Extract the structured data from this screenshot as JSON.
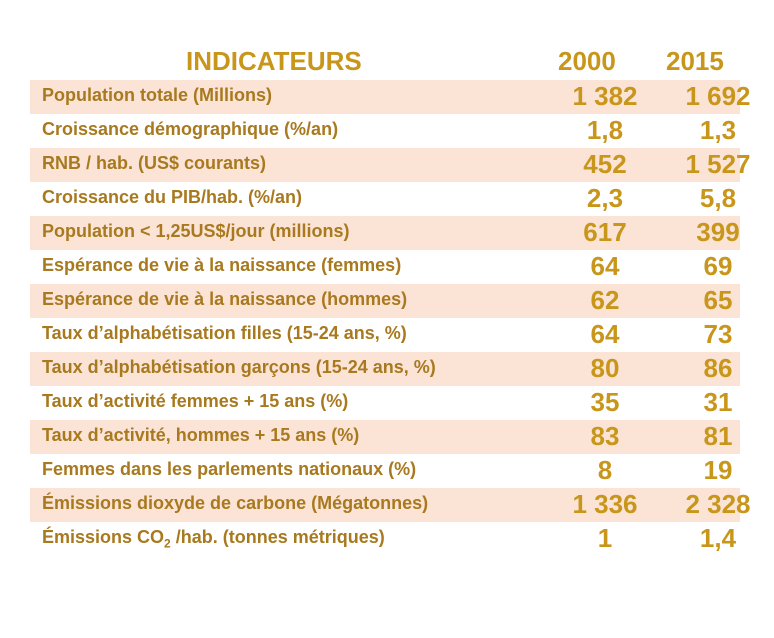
{
  "header": {
    "title": "INDICATEURS",
    "year1": "2000",
    "year2": "2015"
  },
  "rows": [
    {
      "label": "Population totale (Millions)",
      "v2000": "1 382",
      "v2015": "1 692"
    },
    {
      "label": "Croissance démographique (%/an)",
      "v2000": "1,8",
      "v2015": "1,3"
    },
    {
      "label": "RNB / hab. (US$ courants)",
      "v2000": "452",
      "v2015": "1 527"
    },
    {
      "label": "Croissance du PIB/hab. (%/an)",
      "v2000": "2,3",
      "v2015": "5,8"
    },
    {
      "label": "Population < 1,25US$/jour (millions)",
      "v2000": "617",
      "v2015": "399"
    },
    {
      "label": "Espérance de vie à la naissance (femmes)",
      "v2000": "64",
      "v2015": "69"
    },
    {
      "label": "Espérance de vie à la naissance (hommes)",
      "v2000": "62",
      "v2015": "65"
    },
    {
      "label": "Taux d’alphabétisation filles (15-24 ans, %)",
      "v2000": "64",
      "v2015": "73"
    },
    {
      "label": "Taux d’alphabétisation garçons (15-24 ans, %)",
      "v2000": "80",
      "v2015": "86"
    },
    {
      "label": "Taux d’activité femmes + 15 ans (%)",
      "v2000": "35",
      "v2015": "31"
    },
    {
      "label": "Taux d’activité, hommes + 15 ans (%)",
      "v2000": "83",
      "v2015": "81"
    },
    {
      "label": "Femmes dans les parlements nationaux (%)",
      "v2000": "8",
      "v2015": "19"
    },
    {
      "label": "Émissions dioxyde de carbone (Mégatonnes)",
      "v2000": "1 336",
      "v2015": "2 328"
    },
    {
      "label_pre": "Émissions CO",
      "label_sub": "2",
      "label_post": " /hab. (tonnes métriques)",
      "v2000": "1",
      "v2015": "1,4"
    }
  ]
}
